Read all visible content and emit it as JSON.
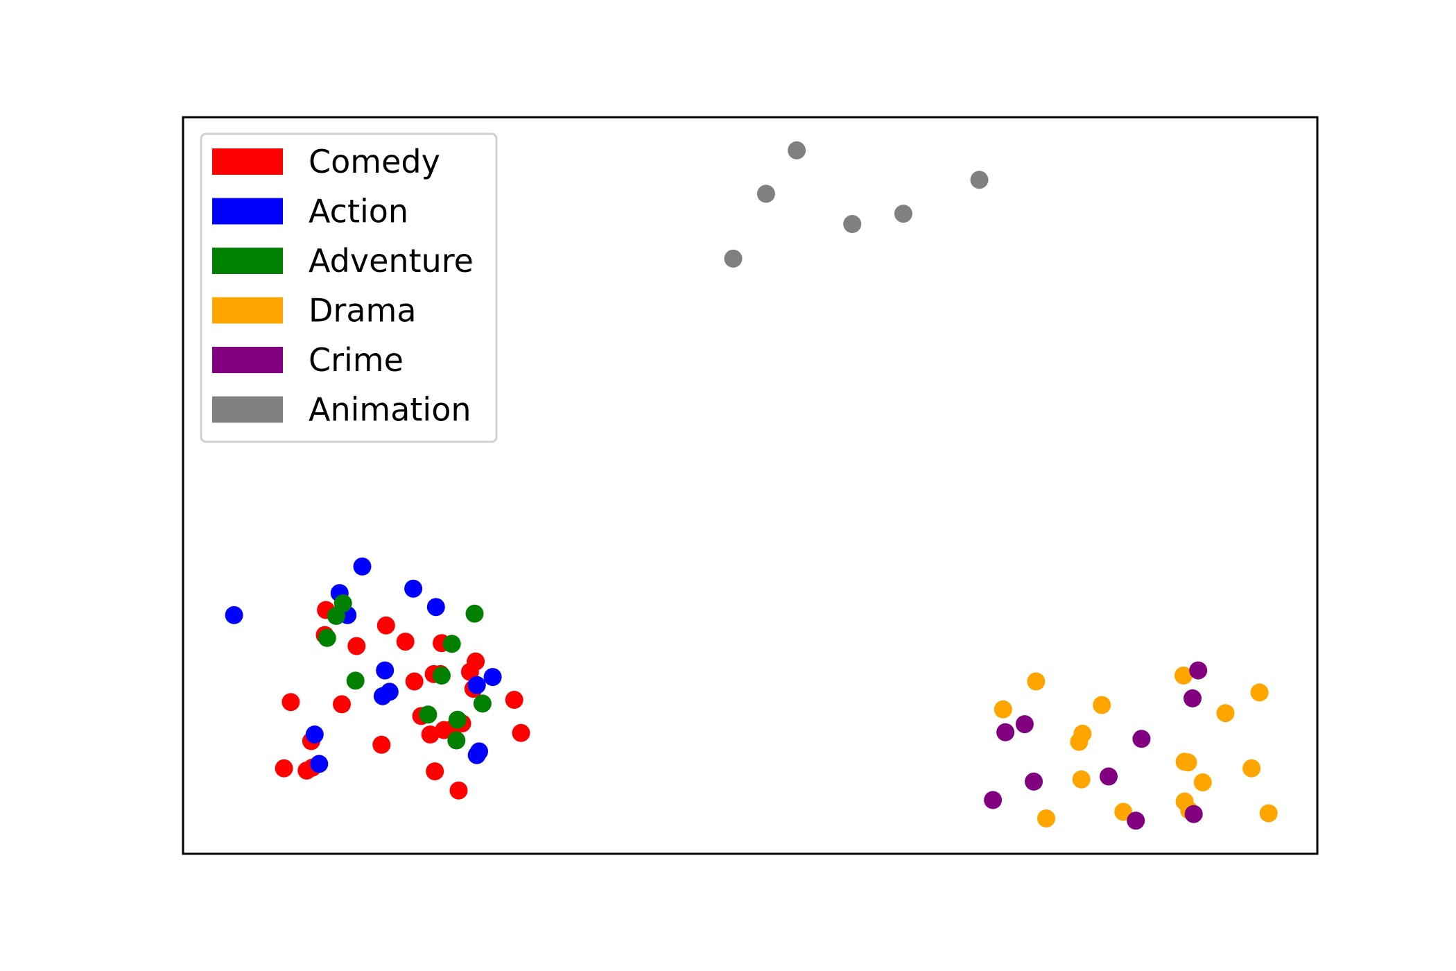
{
  "chart_data": {
    "type": "scatter",
    "title": "",
    "xlabel": "",
    "ylabel": "",
    "xlim": [
      0,
      100
    ],
    "ylim": [
      0,
      100
    ],
    "axis_ticks": false,
    "grid": false,
    "legend_position": "upper-left",
    "series": [
      {
        "name": "Comedy",
        "color": "#ff0000",
        "points": [
          [
            12.6,
            33.1
          ],
          [
            12.5,
            29.7
          ],
          [
            15.3,
            28.2
          ],
          [
            17.9,
            31.0
          ],
          [
            14.0,
            20.3
          ],
          [
            11.4,
            11.7
          ],
          [
            17.5,
            14.8
          ],
          [
            8.9,
            11.6
          ],
          [
            10.9,
            11.3
          ],
          [
            19.6,
            28.8
          ],
          [
            22.7,
            24.4
          ],
          [
            20.4,
            23.4
          ],
          [
            21.0,
            18.7
          ],
          [
            22.1,
            24.4
          ],
          [
            21.8,
            16.2
          ],
          [
            23.0,
            16.8
          ],
          [
            23.8,
            17.0
          ],
          [
            24.6,
            17.7
          ],
          [
            22.2,
            11.2
          ],
          [
            24.3,
            8.6
          ],
          [
            25.3,
            24.7
          ],
          [
            25.6,
            22.4
          ],
          [
            25.8,
            26.1
          ],
          [
            29.2,
            20.9
          ],
          [
            29.8,
            16.4
          ],
          [
            9.5,
            20.6
          ],
          [
            11.3,
            15.3
          ],
          [
            22.8,
            28.6
          ]
        ]
      },
      {
        "name": "Action",
        "color": "#0000ff",
        "points": [
          [
            4.5,
            32.4
          ],
          [
            15.8,
            39.0
          ],
          [
            13.8,
            35.4
          ],
          [
            14.5,
            32.4
          ],
          [
            20.3,
            36.0
          ],
          [
            22.3,
            33.5
          ],
          [
            17.8,
            24.9
          ],
          [
            18.2,
            22.0
          ],
          [
            17.6,
            21.4
          ],
          [
            27.3,
            24.0
          ],
          [
            25.9,
            22.9
          ],
          [
            25.9,
            13.4
          ],
          [
            26.1,
            13.9
          ],
          [
            11.6,
            16.2
          ],
          [
            12.0,
            12.2
          ]
        ]
      },
      {
        "name": "Adventure",
        "color": "#008000",
        "points": [
          [
            14.1,
            34.0
          ],
          [
            13.5,
            32.3
          ],
          [
            12.7,
            29.3
          ],
          [
            15.2,
            23.5
          ],
          [
            25.7,
            32.6
          ],
          [
            23.7,
            28.5
          ],
          [
            22.8,
            24.2
          ],
          [
            26.4,
            20.4
          ],
          [
            21.6,
            18.9
          ],
          [
            24.2,
            18.2
          ],
          [
            24.1,
            15.4
          ]
        ]
      },
      {
        "name": "Drama",
        "color": "#ffa500",
        "points": [
          [
            75.2,
            23.4
          ],
          [
            72.3,
            19.6
          ],
          [
            81.0,
            20.2
          ],
          [
            94.9,
            21.9
          ],
          [
            91.9,
            19.1
          ],
          [
            88.2,
            24.2
          ],
          [
            79.3,
            16.3
          ],
          [
            79.0,
            15.2
          ],
          [
            88.3,
            12.5
          ],
          [
            94.2,
            11.6
          ],
          [
            88.6,
            12.4
          ],
          [
            89.9,
            9.7
          ],
          [
            79.2,
            10.1
          ],
          [
            88.3,
            7.1
          ],
          [
            82.9,
            5.7
          ],
          [
            76.1,
            4.8
          ],
          [
            95.7,
            5.5
          ],
          [
            88.7,
            5.9
          ]
        ]
      },
      {
        "name": "Crime",
        "color": "#800080",
        "points": [
          [
            89.5,
            24.9
          ],
          [
            89.0,
            21.1
          ],
          [
            74.2,
            17.6
          ],
          [
            72.5,
            16.5
          ],
          [
            84.5,
            15.6
          ],
          [
            81.6,
            10.5
          ],
          [
            75.0,
            9.8
          ],
          [
            71.4,
            7.3
          ],
          [
            84.0,
            4.5
          ],
          [
            89.1,
            5.4
          ]
        ]
      },
      {
        "name": "Animation",
        "color": "#808080",
        "points": [
          [
            54.1,
            95.5
          ],
          [
            51.4,
            89.6
          ],
          [
            70.2,
            91.5
          ],
          [
            59.0,
            85.5
          ],
          [
            63.5,
            86.9
          ],
          [
            48.5,
            80.8
          ]
        ]
      }
    ]
  }
}
